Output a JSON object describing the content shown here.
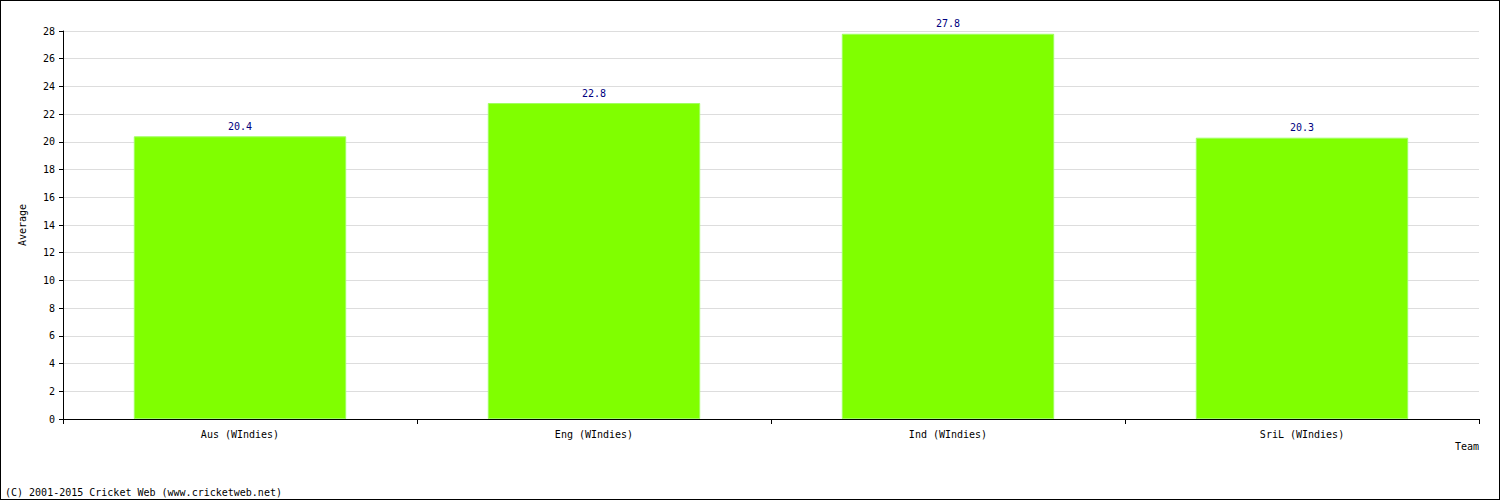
{
  "chart_data": {
    "type": "bar",
    "x_label": "Team",
    "y_label": "Average",
    "categories": [
      "Aus (WIndies)",
      "Eng (WIndies)",
      "Ind (WIndies)",
      "SriL (WIndies)"
    ],
    "values": [
      20.4,
      22.8,
      27.8,
      20.3
    ],
    "color": "#80ff00",
    "ylim": [
      0,
      28
    ],
    "yticks": [
      0,
      2,
      4,
      6,
      8,
      10,
      12,
      14,
      16,
      18,
      20,
      22,
      24,
      26,
      28
    ],
    "grid": true,
    "data_labels": true,
    "annotations": [
      "(C) 2001-2015 Cricket Web (www.cricketweb.net)"
    ]
  }
}
